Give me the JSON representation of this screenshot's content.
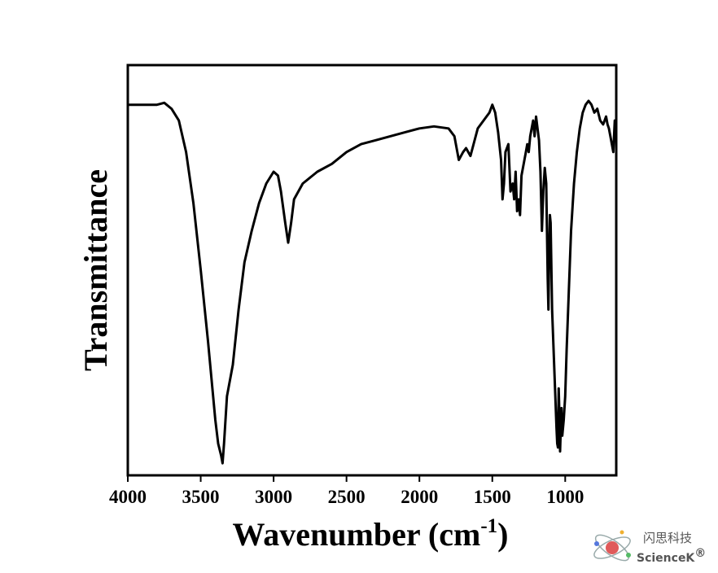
{
  "chart_data": {
    "type": "line",
    "title": "",
    "xlabel": {
      "base": "Wavenumber (cm",
      "sup": "-1",
      "close": ")"
    },
    "ylabel": "Transmittance",
    "xlim": [
      4000,
      650
    ],
    "x_reversed": true,
    "ylim": [
      0,
      100
    ],
    "y_ticks_shown": false,
    "grid": false,
    "x_ticks": [
      4000,
      3500,
      3000,
      2500,
      2000,
      1500,
      1000
    ],
    "x_tick_labels": [
      "4000",
      "3500",
      "3000",
      "2500",
      "2000",
      "1500",
      "1000"
    ],
    "series": [
      {
        "color": "#000000",
        "x": [
          4000,
          3900,
          3800,
          3750,
          3700,
          3650,
          3600,
          3550,
          3500,
          3450,
          3420,
          3400,
          3380,
          3360,
          3350,
          3340,
          3320,
          3280,
          3240,
          3200,
          3150,
          3100,
          3050,
          3000,
          2970,
          2950,
          2920,
          2900,
          2880,
          2860,
          2800,
          2700,
          2600,
          2500,
          2400,
          2300,
          2200,
          2100,
          2000,
          1900,
          1800,
          1760,
          1730,
          1700,
          1680,
          1650,
          1600,
          1560,
          1520,
          1500,
          1480,
          1460,
          1440,
          1430,
          1420,
          1410,
          1390,
          1375,
          1360,
          1350,
          1340,
          1330,
          1320,
          1310,
          1300,
          1290,
          1280,
          1270,
          1260,
          1250,
          1240,
          1230,
          1220,
          1210,
          1200,
          1190,
          1180,
          1170,
          1160,
          1150,
          1140,
          1130,
          1120,
          1115,
          1110,
          1105,
          1100,
          1090,
          1080,
          1070,
          1060,
          1055,
          1050,
          1045,
          1040,
          1035,
          1030,
          1025,
          1020,
          1010,
          1000,
          990,
          980,
          970,
          960,
          940,
          920,
          900,
          880,
          860,
          840,
          820,
          800,
          780,
          760,
          740,
          730,
          720,
          710,
          700,
          690,
          680,
          670,
          665,
          660
        ],
        "y": [
          92,
          92,
          92,
          92.5,
          91,
          88,
          80,
          67,
          50,
          32,
          20,
          12,
          6,
          3,
          1,
          6,
          18,
          26,
          40,
          52,
          60,
          67,
          72,
          75,
          74,
          70,
          62,
          57,
          62,
          68,
          72,
          75,
          77,
          80,
          82,
          83,
          84,
          85,
          86,
          86.5,
          86,
          84,
          78,
          80,
          81,
          79,
          86,
          88,
          90,
          92,
          90,
          85,
          78,
          68,
          72,
          80,
          82,
          70,
          72,
          68,
          75,
          65,
          68,
          64,
          74,
          76,
          78,
          80,
          82,
          80,
          84,
          86,
          88,
          84,
          89,
          86,
          83,
          75,
          60,
          70,
          76,
          72,
          48,
          40,
          55,
          64,
          62,
          40,
          30,
          20,
          10,
          6,
          5,
          20,
          14,
          4,
          10,
          15,
          8,
          12,
          18,
          30,
          40,
          50,
          60,
          72,
          80,
          86,
          90,
          92,
          93,
          92,
          90,
          91,
          88,
          87,
          88,
          89,
          87,
          86,
          84,
          82,
          80,
          84,
          88
        ]
      }
    ]
  },
  "watermark": {
    "chinese_text": "闪思科技",
    "english_text": "ScienceK",
    "registered_mark": "®"
  }
}
